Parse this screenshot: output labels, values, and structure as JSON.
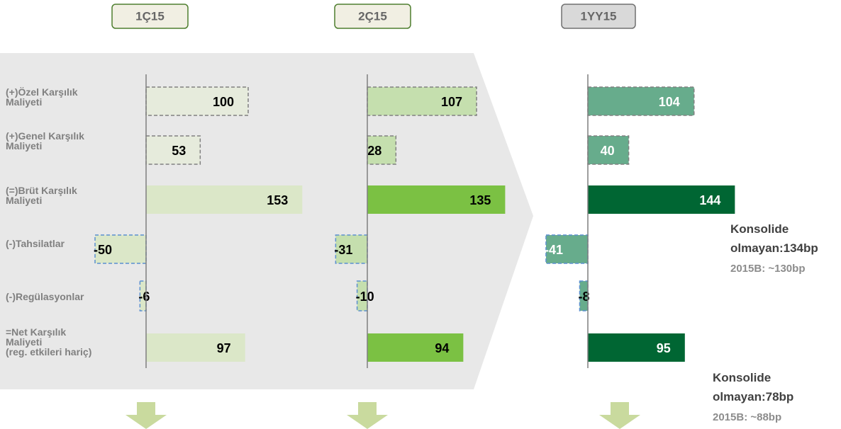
{
  "categories": [
    "(+)Özel Karşılık\nMaliyeti",
    "(+)Genel Karşılık\nMaliyeti",
    "(=)Brüt Karşılık\nMaliyeti",
    "(-)Tahsilatlar",
    "(-)Regülasyonlar",
    "=Net Karşılık\nMaliyeti\n(reg. etkileri hariç)"
  ],
  "chart_data": [
    {
      "type": "bar",
      "title": "1Ç15",
      "values": [
        100,
        53,
        153,
        -50,
        -6,
        97
      ],
      "colors": [
        "#e6ebdc",
        "#e6ebdc",
        "#dbe7c8",
        "#dbe7c8",
        "#dbe7c8",
        "#dbe7c8"
      ],
      "dashed": [
        true,
        true,
        false,
        true,
        true,
        false
      ],
      "label_color": "#000000"
    },
    {
      "type": "bar",
      "title": "2Ç15",
      "values": [
        107,
        28,
        135,
        -31,
        -10,
        94
      ],
      "colors": [
        "#c5dfae",
        "#c5dfae",
        "#7bc143",
        "#c5dfae",
        "#c5dfae",
        "#7bc143"
      ],
      "dashed": [
        true,
        true,
        false,
        true,
        true,
        false
      ],
      "label_color": "#000000"
    },
    {
      "type": "bar",
      "title": "1YY15",
      "values": [
        104,
        40,
        144,
        -41,
        -8,
        95
      ],
      "colors": [
        "#67ac8c",
        "#67ac8c",
        "#006633",
        "#67ac8c",
        "#67ac8c",
        "#006633"
      ],
      "dashed": [
        true,
        true,
        false,
        true,
        true,
        false
      ],
      "label_color": "#ffffff"
    }
  ],
  "annotations": [
    {
      "text": "Konsolide\nolmayan:134bp",
      "note": "2015B: ~130bp"
    },
    {
      "text": "Konsolide\nolmayan:78bp",
      "note": "2015B: ~88bp"
    }
  ]
}
